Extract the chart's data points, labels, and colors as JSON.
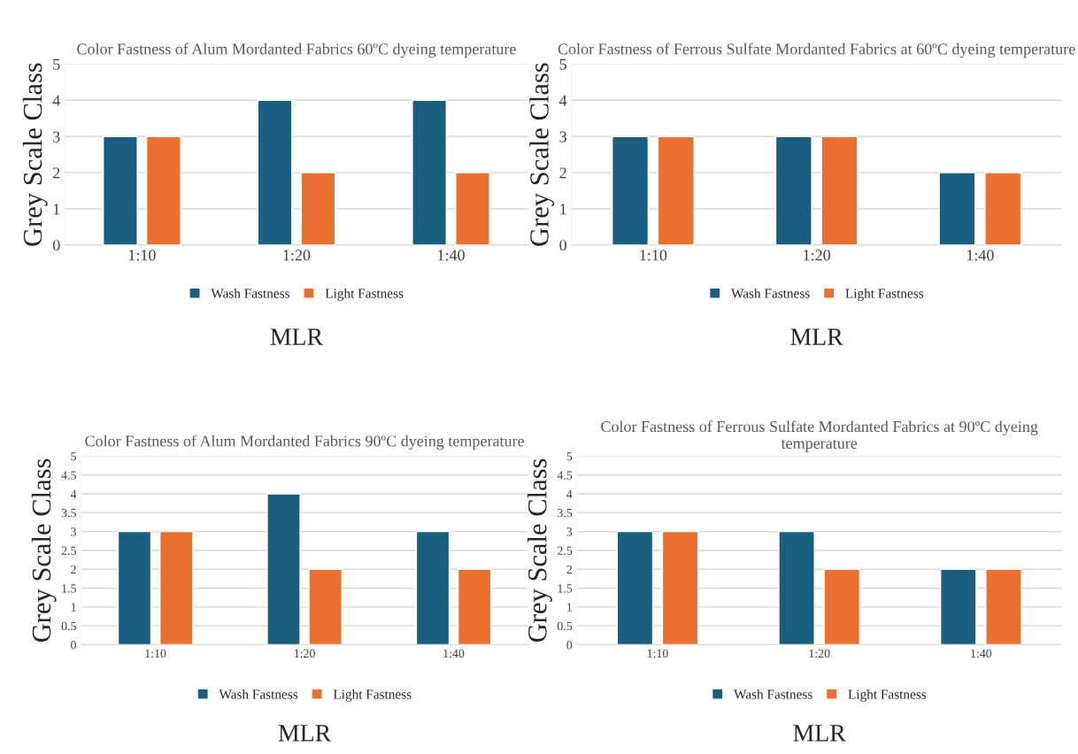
{
  "chart_data": [
    {
      "type": "bar",
      "title": "Color Fastness of Alum Mordanted Fabrics 60ºC dyeing temperature",
      "xlabel": "MLR",
      "ylabel": "Grey Scale Class",
      "categories": [
        "1:10",
        "1:20",
        "1:40"
      ],
      "series": [
        {
          "name": "Wash Fastness",
          "color": "#1a5f80",
          "values": [
            3,
            4,
            4
          ]
        },
        {
          "name": "Light Fastness",
          "color": "#ea7030",
          "values": [
            3,
            2,
            2
          ]
        }
      ],
      "ylim": [
        0,
        5
      ],
      "yticks": [
        0,
        1,
        2,
        3,
        4,
        5
      ],
      "grid": "y",
      "legend": "bottom"
    },
    {
      "type": "bar",
      "title": "Color Fastness of Ferrous Sulfate Mordanted Fabrics at 60ºC dyeing temperature",
      "xlabel": "MLR",
      "ylabel": "Grey Scale Class",
      "categories": [
        "1:10",
        "1:20",
        "1:40"
      ],
      "series": [
        {
          "name": "Wash Fastness",
          "color": "#1a5f80",
          "values": [
            3,
            3,
            2
          ]
        },
        {
          "name": "Light Fastness",
          "color": "#ea7030",
          "values": [
            3,
            3,
            2
          ]
        }
      ],
      "ylim": [
        0,
        5
      ],
      "yticks": [
        0,
        1,
        2,
        3,
        4,
        5
      ],
      "grid": "y",
      "legend": "bottom"
    },
    {
      "type": "bar",
      "title": "Color Fastness of Alum Mordanted Fabrics 90ºC dyeing temperature",
      "xlabel": "MLR",
      "ylabel": "Grey Scale Class",
      "categories": [
        "1:10",
        "1:20",
        "1:40"
      ],
      "series": [
        {
          "name": "Wash Fastness",
          "color": "#1a5f80",
          "values": [
            3,
            4,
            3
          ]
        },
        {
          "name": "Light Fastness",
          "color": "#ea7030",
          "values": [
            3,
            2,
            2
          ]
        }
      ],
      "ylim": [
        0,
        5
      ],
      "yticks": [
        0,
        0.5,
        1,
        1.5,
        2,
        2.5,
        3,
        3.5,
        4,
        4.5,
        5
      ],
      "grid": "y",
      "legend": "bottom"
    },
    {
      "type": "bar",
      "title": "Color Fastness of Ferrous Sulfate Mordanted Fabrics at 90ºC dyeing temperature",
      "xlabel": "MLR",
      "ylabel": "Grey Scale Class",
      "categories": [
        "1:10",
        "1:20",
        "1:40"
      ],
      "series": [
        {
          "name": "Wash Fastness",
          "color": "#1a5f80",
          "values": [
            3,
            3,
            2
          ]
        },
        {
          "name": "Light Fastness",
          "color": "#ea7030",
          "values": [
            3,
            2,
            2
          ]
        }
      ],
      "ylim": [
        0,
        5
      ],
      "yticks": [
        0,
        0.5,
        1,
        1.5,
        2,
        2.5,
        3,
        3.5,
        4,
        4.5,
        5
      ],
      "grid": "y",
      "legend": "bottom"
    }
  ]
}
